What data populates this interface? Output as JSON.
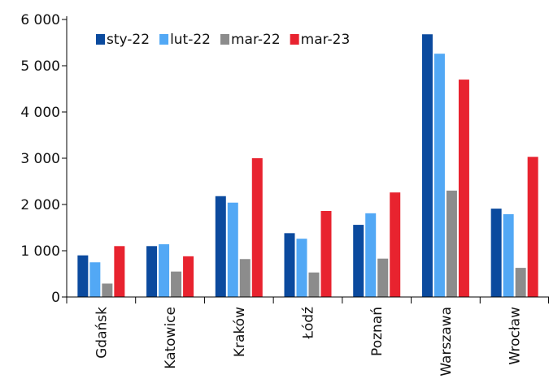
{
  "chart_data": {
    "type": "bar",
    "categories": [
      "Gdańsk",
      "Katowice",
      "Kraków",
      "Łódź",
      "Poznań",
      "Warszawa",
      "Wrocław"
    ],
    "series": [
      {
        "name": "sty-22",
        "color": "#0b4a9e",
        "values": [
          900,
          1100,
          2180,
          1380,
          1560,
          5680,
          1910
        ]
      },
      {
        "name": "lut-22",
        "color": "#52a8f5",
        "values": [
          750,
          1140,
          2040,
          1260,
          1810,
          5260,
          1790
        ]
      },
      {
        "name": "mar-22",
        "color": "#8c8c8c",
        "values": [
          290,
          550,
          820,
          530,
          830,
          2300,
          630
        ]
      },
      {
        "name": "mar-23",
        "color": "#e8232f",
        "values": [
          1100,
          880,
          3000,
          1860,
          2260,
          4700,
          3030
        ]
      }
    ],
    "yticks": [
      0,
      1000,
      2000,
      3000,
      4000,
      5000,
      6000
    ],
    "ytick_labels": [
      "0",
      "1 000",
      "2 000",
      "3 000",
      "4 000",
      "5 000",
      "6 000"
    ],
    "ylim": [
      0,
      6000
    ],
    "grid": false,
    "legend_position": "top-left"
  }
}
